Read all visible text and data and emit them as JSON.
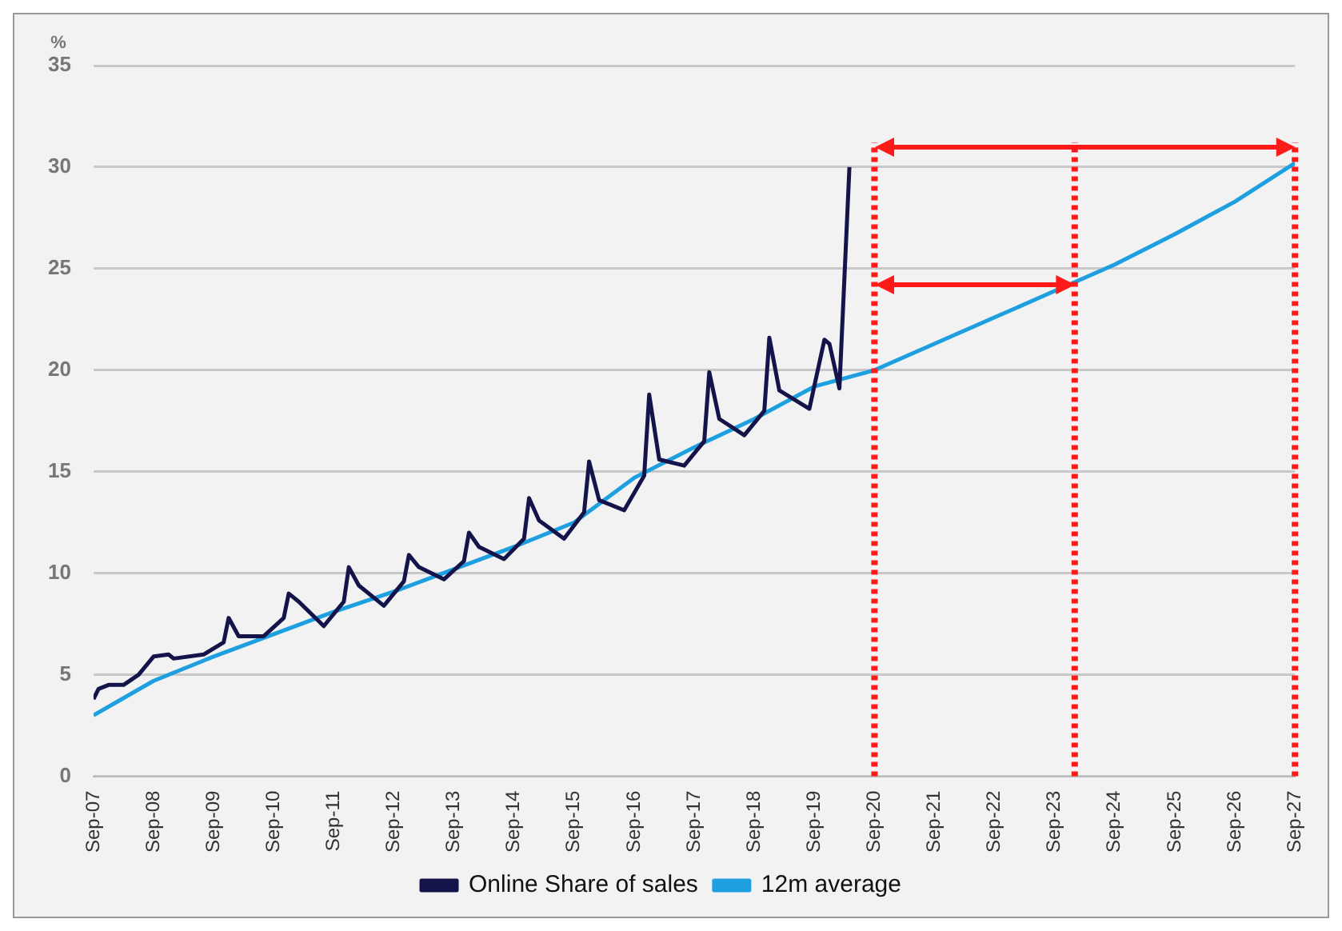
{
  "chart_data": {
    "type": "line",
    "ylabel": "%",
    "xlim": [
      "2007-09",
      "2027-09"
    ],
    "xticks": [
      {
        "value": "2007-09",
        "label": "Sep-07"
      },
      {
        "value": "2008-09",
        "label": "Sep-08"
      },
      {
        "value": "2009-09",
        "label": "Sep-09"
      },
      {
        "value": "2010-09",
        "label": "Sep-10"
      },
      {
        "value": "2011-09",
        "label": "Sep-11"
      },
      {
        "value": "2012-09",
        "label": "Sep-12"
      },
      {
        "value": "2013-09",
        "label": "Sep-13"
      },
      {
        "value": "2014-09",
        "label": "Sep-14"
      },
      {
        "value": "2015-09",
        "label": "Sep-15"
      },
      {
        "value": "2016-09",
        "label": "Sep-16"
      },
      {
        "value": "2017-09",
        "label": "Sep-17"
      },
      {
        "value": "2018-09",
        "label": "Sep-18"
      },
      {
        "value": "2019-09",
        "label": "Sep-19"
      },
      {
        "value": "2020-09",
        "label": "Sep-20"
      },
      {
        "value": "2021-09",
        "label": "Sep-21"
      },
      {
        "value": "2022-09",
        "label": "Sep-22"
      },
      {
        "value": "2023-09",
        "label": "Sep-23"
      },
      {
        "value": "2024-09",
        "label": "Sep-24"
      },
      {
        "value": "2025-09",
        "label": "Sep-25"
      },
      {
        "value": "2026-09",
        "label": "Sep-26"
      },
      {
        "value": "2027-09",
        "label": "Sep-27"
      }
    ],
    "ylim": [
      0,
      35
    ],
    "yticks": [
      0,
      5,
      10,
      15,
      20,
      25,
      30,
      35
    ],
    "grid": "y",
    "legend": "bottom",
    "marker": "none",
    "line_style": "solid",
    "series": [
      {
        "name": "Online Share of sales",
        "color": "#14144a",
        "x": [
          "2007-09",
          "2007-10",
          "2007-12",
          "2008-03",
          "2008-06",
          "2008-09",
          "2008-12",
          "2009-01",
          "2009-07",
          "2009-11",
          "2009-12",
          "2010-02",
          "2010-07",
          "2010-11",
          "2010-12",
          "2011-02",
          "2011-07",
          "2011-11",
          "2011-12",
          "2012-02",
          "2012-07",
          "2012-11",
          "2012-12",
          "2013-02",
          "2013-07",
          "2013-11",
          "2013-12",
          "2014-02",
          "2014-07",
          "2014-11",
          "2014-12",
          "2015-02",
          "2015-07",
          "2015-11",
          "2015-12",
          "2016-02",
          "2016-07",
          "2016-11",
          "2016-12",
          "2017-02",
          "2017-07",
          "2017-11",
          "2017-12",
          "2018-02",
          "2018-07",
          "2018-11",
          "2018-12",
          "2019-02",
          "2019-08",
          "2019-11",
          "2019-12",
          "2020-02",
          "2020-04"
        ],
        "values": [
          3.8,
          4.3,
          4.5,
          4.5,
          5.0,
          5.9,
          6.0,
          5.8,
          6.0,
          6.6,
          7.8,
          6.9,
          6.9,
          7.8,
          9.0,
          8.6,
          7.4,
          8.6,
          10.3,
          9.4,
          8.4,
          9.6,
          10.9,
          10.3,
          9.7,
          10.6,
          12.0,
          11.3,
          10.7,
          11.7,
          13.7,
          12.6,
          11.7,
          13.0,
          15.5,
          13.6,
          13.1,
          14.8,
          18.8,
          15.6,
          15.3,
          16.5,
          19.9,
          17.6,
          16.8,
          18.0,
          21.6,
          19.0,
          18.1,
          21.5,
          21.3,
          19.1,
          30.0
        ]
      },
      {
        "name": "12m average",
        "color": "#1ea0e0",
        "x": [
          "2007-09",
          "2008-09",
          "2009-09",
          "2010-09",
          "2011-09",
          "2012-09",
          "2013-09",
          "2014-09",
          "2015-09",
          "2016-09",
          "2017-09",
          "2018-09",
          "2019-09",
          "2020-09",
          "2021-09",
          "2022-09",
          "2023-09",
          "2024-09",
          "2025-09",
          "2026-09",
          "2027-09"
        ],
        "values": [
          3.0,
          4.7,
          5.9,
          7.0,
          8.1,
          9.1,
          10.2,
          11.3,
          12.5,
          14.7,
          16.2,
          17.6,
          19.2,
          20.0,
          21.3,
          22.6,
          23.9,
          25.2,
          26.7,
          28.3,
          30.2
        ]
      }
    ],
    "ref_lines": [
      {
        "axis": "x",
        "value": "2020-09",
        "color": "#ff1a1a",
        "line_style": "dotted"
      },
      {
        "axis": "x",
        "value": "2024-01",
        "color": "#ff1a1a",
        "line_style": "dotted"
      },
      {
        "axis": "x",
        "value": "2027-09",
        "color": "#ff1a1a",
        "line_style": "dotted"
      }
    ]
  }
}
